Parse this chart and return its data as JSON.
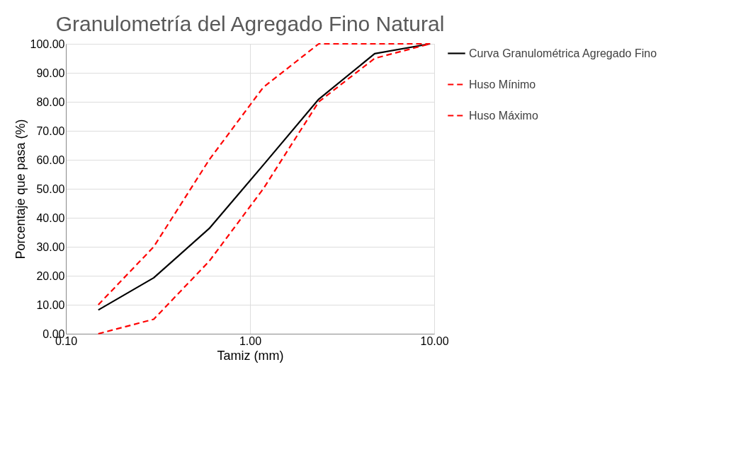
{
  "chart_data": {
    "type": "line",
    "title": "Granulometría del Agregado Fino Natural",
    "xlabel": "Tamiz (mm)",
    "ylabel": "Porcentaje que pasa (%)",
    "log": "x",
    "grid": true,
    "legend": "right",
    "xlim": [
      0.1,
      10
    ],
    "ylim": [
      0,
      100
    ],
    "xticks": [
      {
        "value": 0.1,
        "label": "0.10"
      },
      {
        "value": 1,
        "label": "1.00"
      },
      {
        "value": 10,
        "label": "10.00"
      }
    ],
    "yticks": [
      {
        "value": 0,
        "label": "0.00"
      },
      {
        "value": 10,
        "label": "10.00"
      },
      {
        "value": 20,
        "label": "20.00"
      },
      {
        "value": 30,
        "label": "30.00"
      },
      {
        "value": 40,
        "label": "40.00"
      },
      {
        "value": 50,
        "label": "50.00"
      },
      {
        "value": 60,
        "label": "60.00"
      },
      {
        "value": 70,
        "label": "70.00"
      },
      {
        "value": 80,
        "label": "80.00"
      },
      {
        "value": 90,
        "label": "90.00"
      },
      {
        "value": 100,
        "label": "100.00"
      }
    ],
    "x": [
      0.15,
      0.3,
      0.6,
      1.18,
      2.36,
      4.75,
      9.5
    ],
    "series": [
      {
        "name": "Curva Granulométrica Agregado Fino",
        "color": "#000000",
        "line_style": "solid",
        "values": [
          8.2,
          19.3,
          36.3,
          58.2,
          80.9,
          96.6,
          100
        ]
      },
      {
        "name": "Huso Mínimo",
        "color": "#ff0000",
        "line_style": "dashed",
        "values": [
          0,
          5,
          25,
          50,
          80,
          95,
          100
        ]
      },
      {
        "name": "Huso Máximo",
        "color": "#ff0000",
        "line_style": "dashed",
        "values": [
          10,
          30,
          60,
          85,
          100,
          100,
          100
        ]
      }
    ]
  }
}
